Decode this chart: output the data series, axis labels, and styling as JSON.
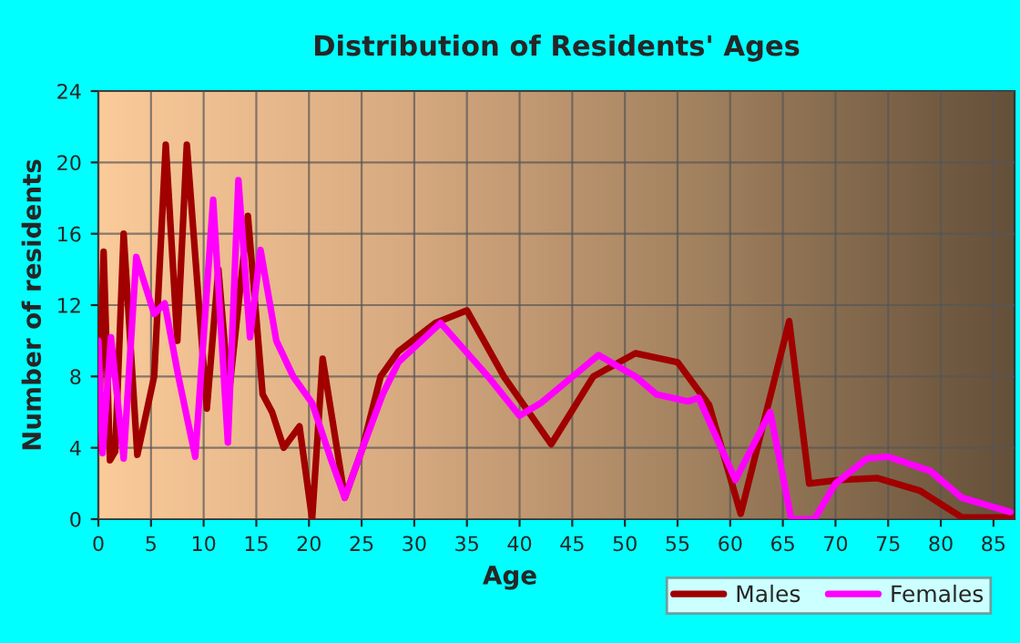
{
  "chart_data": {
    "type": "line",
    "title": "Distribution of Residents' Ages",
    "xlabel": "Age",
    "ylabel": "Number of residents",
    "xlim": [
      0,
      87
    ],
    "xticks": [
      0,
      5,
      10,
      15,
      20,
      25,
      30,
      35,
      40,
      45,
      50,
      55,
      60,
      65,
      70,
      75,
      80,
      85
    ],
    "ylim": [
      0,
      24
    ],
    "yticks": [
      0,
      4,
      8,
      12,
      16,
      20,
      24
    ],
    "grid": true,
    "legend": "bottom",
    "marker": "none",
    "line_style": "solid",
    "series": [
      {
        "name": "Males",
        "color": "#a00000",
        "x": [
          0,
          0.5,
          1.1,
          1.6,
          2.4,
          3.7,
          5.3,
          6.4,
          7.5,
          8.4,
          10.3,
          11.4,
          12.4,
          14.2,
          15.6,
          16.5,
          17.6,
          19.1,
          20.3,
          21.3,
          23.4,
          25.1,
          26.8,
          28.5,
          32,
          35,
          38.5,
          43,
          47,
          51,
          55,
          58,
          61,
          65.6,
          67.5,
          70.5,
          74,
          78,
          82,
          87
        ],
        "values": [
          4,
          15,
          3.3,
          3.8,
          16,
          3.6,
          8,
          21,
          10,
          21,
          6.2,
          14,
          7,
          17,
          7,
          6,
          4,
          5.2,
          0,
          9,
          1.2,
          4,
          8,
          9.4,
          11,
          11.7,
          8,
          4.2,
          8,
          9.3,
          8.8,
          6.4,
          0.3,
          11.1,
          2,
          2.2,
          2.3,
          1.6,
          0.1,
          0.1
        ]
      },
      {
        "name": "Females",
        "color": "#ff00ff",
        "x": [
          0,
          0.4,
          1.2,
          2.4,
          3.6,
          5.3,
          6.3,
          7.6,
          9.2,
          10.9,
          12.3,
          13.3,
          14.4,
          15.4,
          16.9,
          18.5,
          20.3,
          22,
          23.4,
          25.1,
          27,
          28.5,
          32.5,
          37,
          40,
          42,
          47.5,
          51,
          53,
          56,
          57,
          60.5,
          63.8,
          65.8,
          68,
          70,
          73,
          75,
          79,
          82,
          86.6
        ],
        "values": [
          10,
          3.7,
          10.2,
          3.4,
          14.7,
          11.5,
          12.1,
          8,
          3.5,
          17.9,
          4.3,
          19,
          10.2,
          15.1,
          10,
          8,
          6.5,
          3.5,
          1.2,
          4,
          7,
          8.8,
          11,
          8,
          5.8,
          6.5,
          9.2,
          8,
          7,
          6.6,
          6.8,
          2.2,
          6,
          0,
          0,
          2,
          3.4,
          3.5,
          2.7,
          1.2,
          0.4
        ]
      }
    ]
  }
}
